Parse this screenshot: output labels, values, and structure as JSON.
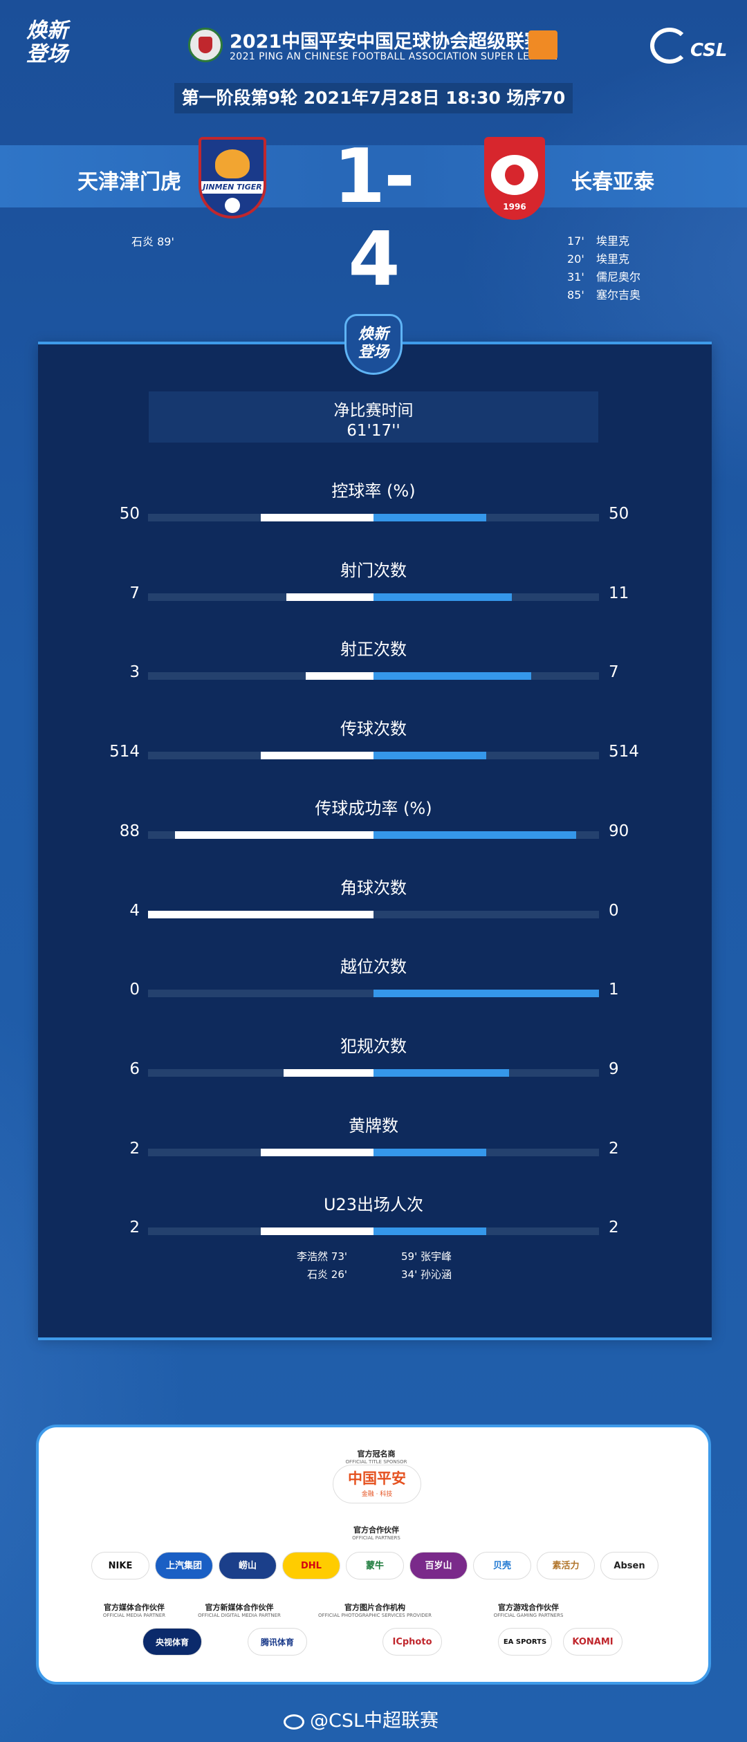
{
  "header": {
    "brand_left_line1": "焕新",
    "brand_left_line2": "登场",
    "league_title": "2021中国平安中国足球协会超级联赛",
    "league_subtitle": "2021 PING AN CHINESE FOOTBALL ASSOCIATION SUPER LEAGUE",
    "csl_logo_text": "CSL",
    "match_info": "第一阶段第9轮  2021年7月28日 18:30 场序70"
  },
  "match": {
    "home_team": "天津津门虎",
    "away_team": "长春亚泰",
    "home_crest_text": "JINMEN TIGER",
    "away_crest_year": "1996",
    "score": "1-4",
    "home_scorers": [
      {
        "name": "石炎",
        "minute": "89'"
      }
    ],
    "away_scorers": [
      {
        "minute": "17'",
        "name": "埃里克"
      },
      {
        "minute": "20'",
        "name": "埃里克"
      },
      {
        "minute": "31'",
        "name": "儒尼奥尔"
      },
      {
        "minute": "85'",
        "name": "塞尔吉奥"
      }
    ]
  },
  "stats_panel": {
    "shield_line1": "焕新",
    "shield_line2": "登场",
    "net_time_label": "净比赛时间",
    "net_time_value": "61'17''",
    "stats": [
      {
        "label": "控球率 (%)",
        "home": "50",
        "away": "50",
        "home_share": 0.25,
        "away_share": 0.25
      },
      {
        "label": "射门次数",
        "home": "7",
        "away": "11",
        "home_share": 0.194,
        "away_share": 0.306
      },
      {
        "label": "射正次数",
        "home": "3",
        "away": "7",
        "home_share": 0.15,
        "away_share": 0.35
      },
      {
        "label": "传球次数",
        "home": "514",
        "away": "514",
        "home_share": 0.25,
        "away_share": 0.25
      },
      {
        "label": "传球成功率 (%)",
        "home": "88",
        "away": "90",
        "home_share": 0.44,
        "away_share": 0.45
      },
      {
        "label": "角球次数",
        "home": "4",
        "away": "0",
        "home_share": 0.5,
        "away_share": 0.0
      },
      {
        "label": "越位次数",
        "home": "0",
        "away": "1",
        "home_share": 0.0,
        "away_share": 0.5
      },
      {
        "label": "犯规次数",
        "home": "6",
        "away": "9",
        "home_share": 0.2,
        "away_share": 0.3
      },
      {
        "label": "黄牌数",
        "home": "2",
        "away": "2",
        "home_share": 0.25,
        "away_share": 0.25
      },
      {
        "label": "U23出场人次",
        "home": "2",
        "away": "2",
        "home_share": 0.25,
        "away_share": 0.25
      }
    ],
    "u23_home": [
      {
        "name": "李浩然",
        "minute": "73'"
      },
      {
        "name": "石炎",
        "minute": "26'"
      }
    ],
    "u23_away": [
      {
        "minute": "59'",
        "name": "张宇峰"
      },
      {
        "minute": "34'",
        "name": "孙沁涵"
      }
    ]
  },
  "sponsors": {
    "title_sponsor_heading": "官方冠名商",
    "title_sponsor_heading_en": "OFFICIAL TITLE SPONSOR",
    "title_sponsor_name": "中国平安",
    "title_sponsor_tagline": "金融 · 科技",
    "partners_heading": "官方合作伙伴",
    "partners_heading_en": "OFFICIAL PARTNERS",
    "partners": [
      "NIKE",
      "上汽集团",
      "崂山",
      "DHL",
      "蒙牛",
      "百岁山",
      "贝壳",
      "素活力",
      "Absen"
    ],
    "media_heading": "官方媒体合作伙伴",
    "media_heading_en": "OFFICIAL MEDIA PARTNER",
    "media_partner": "央视体育",
    "digital_heading": "官方新媒体合作伙伴",
    "digital_heading_en": "OFFICIAL DIGITAL MEDIA PARTNER",
    "digital_partner": "腾讯体育",
    "photo_heading": "官方图片合作机构",
    "photo_heading_en": "OFFICIAL PHOTOGRAPHIC SERVICES PROVIDER",
    "photo_partner": "ICphoto",
    "gaming_heading": "官方游戏合作伙伴",
    "gaming_heading_en": "OFFICIAL GAMING PARTNERS",
    "gaming_partners": [
      "EA SPORTS",
      "KONAMI"
    ]
  },
  "footer": {
    "weibo_handle": "@CSL中超联赛"
  },
  "colors": {
    "background": "#1e5aa6",
    "panel": "#0e2a5c",
    "home_bar": "#ffffff",
    "away_bar": "#3597ea",
    "accent_line": "#3f9bea"
  }
}
